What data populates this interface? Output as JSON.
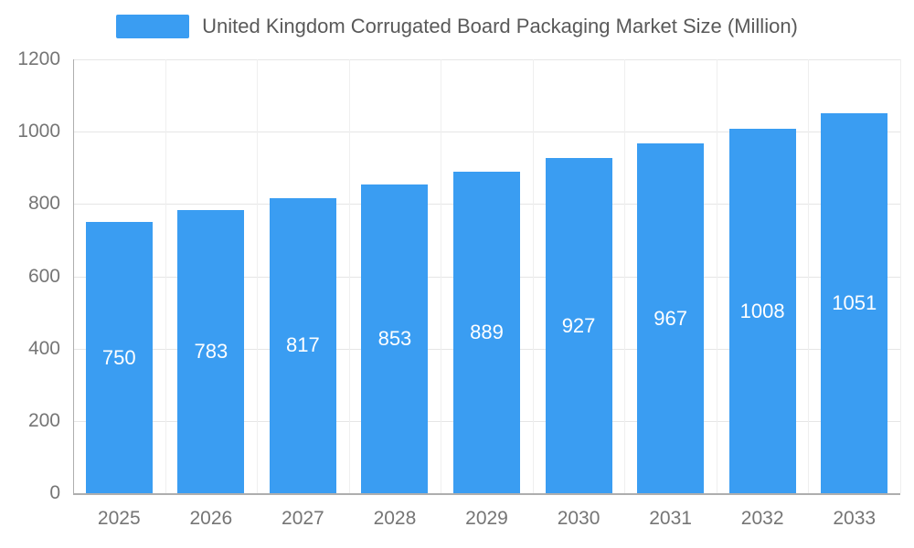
{
  "chart_data": {
    "type": "bar",
    "title": "United Kingdom Corrugated Board Packaging Market Size (Million)",
    "categories": [
      "2025",
      "2026",
      "2027",
      "2028",
      "2029",
      "2030",
      "2031",
      "2032",
      "2033"
    ],
    "values": [
      750,
      783,
      817,
      853,
      889,
      927,
      967,
      1008,
      1051
    ],
    "xlabel": "",
    "ylabel": "",
    "ylim": [
      0,
      1200
    ],
    "ytick_step": 200,
    "grid": true,
    "legend_position": "top",
    "colors": {
      "bar": "#3A9DF2",
      "bar_label_text": "#ffffff",
      "axis_text": "#757575",
      "title_text": "#595959",
      "grid_line": "#e6e6e6",
      "axis_line": "#aeaeae"
    }
  }
}
